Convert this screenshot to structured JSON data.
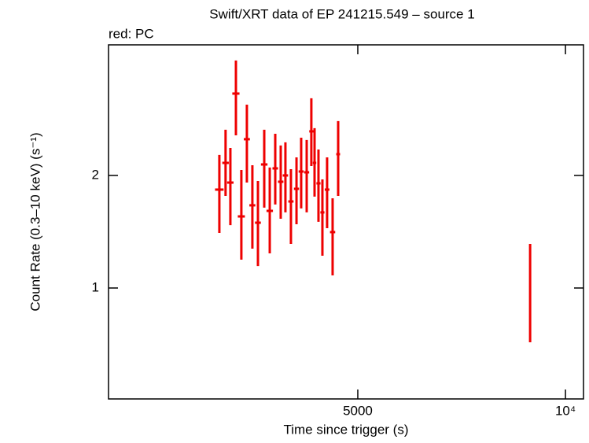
{
  "chart_data": {
    "type": "errorbar",
    "title": "Swift/XRT data of EP 241215.549 – source 1",
    "subtitle": "red: PC",
    "x_label": "Time since trigger (s)",
    "y_label": "Count Rate (0.3–10 keV) (s⁻¹)",
    "log_x": true,
    "log_y": true,
    "xlim": [
      2176,
      10620
    ],
    "ylim": [
      0.505,
      4.47
    ],
    "xticks": [
      5000,
      {
        "value": 10000,
        "label": "10⁴"
      }
    ],
    "yticks": [
      1,
      2
    ],
    "series": [
      {
        "name": "PC",
        "color": "#ee0000",
        "x": [
          3150,
          3216,
          3268,
          3329,
          3390,
          3453,
          3517,
          3583,
          3659,
          3727,
          3796,
          3866,
          3927,
          4000,
          4075,
          4139,
          4216,
          4282,
          4328,
          4385,
          4443,
          4513,
          4597,
          4683,
          8887
        ],
        "xerr": [
          45,
          35,
          35,
          40,
          40,
          35,
          35,
          35,
          40,
          40,
          35,
          35,
          35,
          35,
          35,
          35,
          35,
          30,
          25,
          30,
          30,
          35,
          40,
          30,
          10
        ],
        "values": [
          1.833,
          2.161,
          1.914,
          3.311,
          1.554,
          2.5,
          1.664,
          1.495,
          2.14,
          1.608,
          2.089,
          1.924,
          2.0,
          1.704,
          1.842,
          2.049,
          2.039,
          2.624,
          2.161,
          1.905,
          1.593,
          1.833,
          1.411,
          2.28,
          0.971
        ],
        "y_lower": [
          1.404,
          1.763,
          1.473,
          2.561,
          1.191,
          1.914,
          1.274,
          1.145,
          1.64,
          1.238,
          1.672,
          1.532,
          1.593,
          1.312,
          1.481,
          1.632,
          1.593,
          2.12,
          1.755,
          1.503,
          1.22,
          1.445,
          1.081,
          1.763,
          0.716
        ],
        "y_upper": [
          2.269,
          2.65,
          2.37,
          4.059,
          2.069,
          3.093,
          2.13,
          1.933,
          2.65,
          2.1,
          2.586,
          2.405,
          2.452,
          2.079,
          2.236,
          2.524,
          2.488,
          3.217,
          2.676,
          2.347,
          1.952,
          2.236,
          1.738,
          2.795,
          1.312
        ]
      }
    ]
  }
}
